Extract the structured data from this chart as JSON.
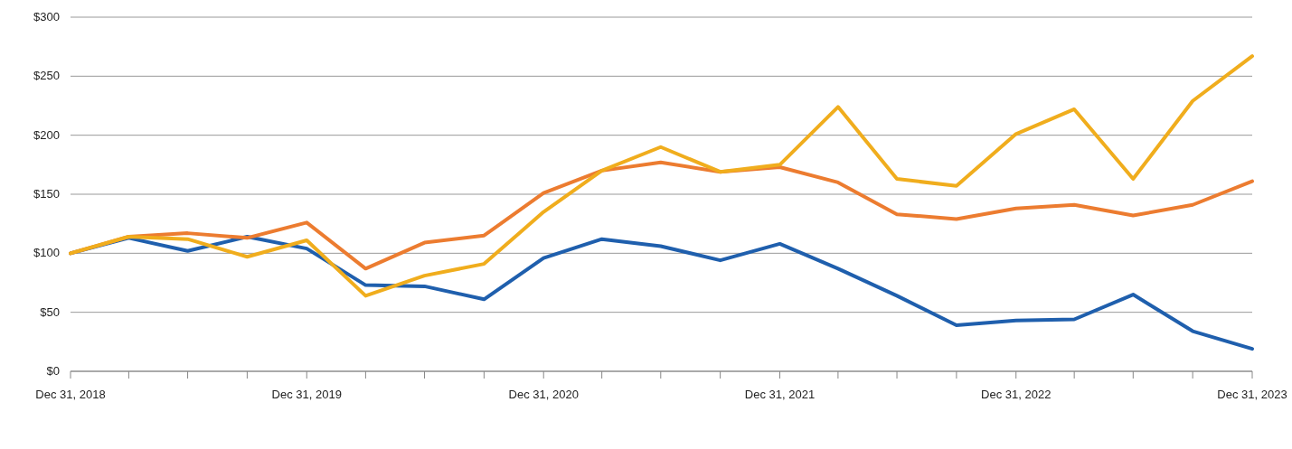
{
  "chart_data": {
    "type": "line",
    "x": [
      "2018-12-31",
      "2019-03-31",
      "2019-06-30",
      "2019-09-30",
      "2019-12-31",
      "2020-03-31",
      "2020-06-30",
      "2020-09-30",
      "2020-12-31",
      "2021-03-31",
      "2021-06-30",
      "2021-09-30",
      "2021-12-31",
      "2022-03-31",
      "2022-06-30",
      "2022-09-30",
      "2022-12-31",
      "2023-03-31",
      "2023-06-30",
      "2023-09-30",
      "2023-12-31"
    ],
    "series": [
      {
        "color": "#1f5fad",
        "values": [
          100,
          113,
          102,
          114,
          104,
          73,
          72,
          61,
          96,
          112,
          106,
          94,
          108,
          87,
          64,
          39,
          43,
          44,
          65,
          34,
          19
        ]
      },
      {
        "color": "#ec7c30",
        "values": [
          100,
          114,
          117,
          113,
          126,
          87,
          109,
          115,
          151,
          170,
          177,
          169,
          173,
          160,
          133,
          129,
          138,
          141,
          132,
          141,
          161
        ]
      },
      {
        "color": "#f0ad1d",
        "values": [
          100,
          114,
          112,
          97,
          111,
          64,
          81,
          91,
          135,
          170,
          190,
          169,
          175,
          224,
          163,
          157,
          201,
          222,
          163,
          229,
          267
        ]
      }
    ],
    "xlim": [
      "2018-12-31",
      "2023-12-31"
    ],
    "xticks": [
      {
        "value": "2018-12-31",
        "label": "Dec 31, 2018"
      },
      {
        "value": "2019-03-31",
        "label": null
      },
      {
        "value": "2019-06-30",
        "label": null
      },
      {
        "value": "2019-09-30",
        "label": null
      },
      {
        "value": "2019-12-31",
        "label": "Dec 31, 2019"
      },
      {
        "value": "2020-03-31",
        "label": null
      },
      {
        "value": "2020-06-30",
        "label": null
      },
      {
        "value": "2020-09-30",
        "label": null
      },
      {
        "value": "2020-12-31",
        "label": "Dec 31, 2020"
      },
      {
        "value": "2021-03-31",
        "label": null
      },
      {
        "value": "2021-06-30",
        "label": null
      },
      {
        "value": "2021-09-30",
        "label": null
      },
      {
        "value": "2021-12-31",
        "label": "Dec 31, 2021"
      },
      {
        "value": "2022-03-31",
        "label": null
      },
      {
        "value": "2022-06-30",
        "label": null
      },
      {
        "value": "2022-09-30",
        "label": null
      },
      {
        "value": "2022-12-31",
        "label": "Dec 31, 2022"
      },
      {
        "value": "2023-03-31",
        "label": null
      },
      {
        "value": "2023-06-30",
        "label": null
      },
      {
        "value": "2023-09-30",
        "label": null
      },
      {
        "value": "2023-12-31",
        "label": "Dec 31, 2023"
      }
    ],
    "ylim": [
      0,
      300
    ],
    "yticks": [
      {
        "value": 0,
        "label": "$0"
      },
      {
        "value": 50,
        "label": "$50"
      },
      {
        "value": 100,
        "label": "$100"
      },
      {
        "value": 150,
        "label": "$150"
      },
      {
        "value": 200,
        "label": "$200"
      },
      {
        "value": 250,
        "label": "$250"
      },
      {
        "value": 300,
        "label": "$300"
      }
    ],
    "grid": "y",
    "marker": "none",
    "line_style": "solid"
  }
}
